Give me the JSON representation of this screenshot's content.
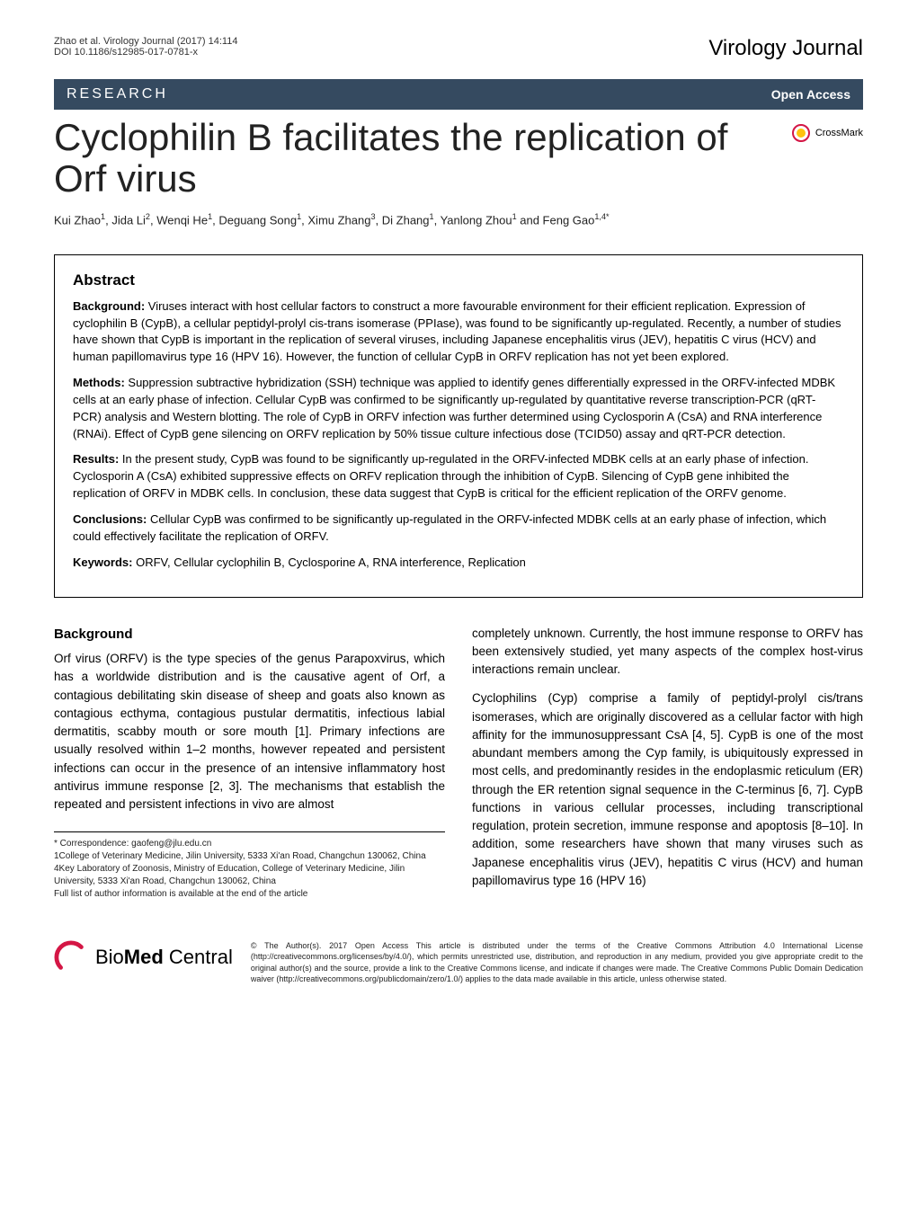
{
  "header": {
    "citation_line1": "Zhao et al. Virology Journal  (2017) 14:114",
    "citation_line2": "DOI 10.1186/s12985-017-0781-x",
    "journal": "Virology Journal"
  },
  "banner": {
    "label": "RESEARCH",
    "open_access": "Open Access"
  },
  "title": "Cyclophilin B facilitates the replication of Orf virus",
  "crossmark": "CrossMark",
  "authors_html": "Kui Zhao<sup>1</sup>, Jida Li<sup>2</sup>, Wenqi He<sup>1</sup>, Deguang Song<sup>1</sup>, Ximu Zhang<sup>3</sup>, Di Zhang<sup>1</sup>, Yanlong Zhou<sup>1</sup> and Feng Gao<sup>1,4*</sup>",
  "abstract": {
    "heading": "Abstract",
    "background_label": "Background:",
    "background": " Viruses interact with host cellular factors to construct a more favourable environment for their efficient replication. Expression of cyclophilin B (CypB), a cellular peptidyl-prolyl cis-trans isomerase (PPIase), was found to be significantly up-regulated. Recently, a number of studies have shown that CypB is important in the replication of several viruses, including Japanese encephalitis virus (JEV), hepatitis C virus (HCV) and human papillomavirus type 16 (HPV 16). However, the function of cellular CypB in ORFV replication has not yet been explored.",
    "methods_label": "Methods:",
    "methods": " Suppression subtractive hybridization (SSH) technique was applied to identify genes differentially expressed in the ORFV-infected MDBK cells at an early phase of infection. Cellular CypB was confirmed to be significantly up-regulated by quantitative reverse transcription-PCR (qRT-PCR) analysis and Western blotting. The role of CypB in ORFV infection was further determined using Cyclosporin A (CsA) and RNA interference (RNAi). Effect of CypB gene silencing on ORFV replication by 50% tissue culture infectious dose (TCID50) assay and qRT-PCR detection.",
    "results_label": "Results:",
    "results": " In the present study, CypB was found to be significantly up-regulated in the ORFV-infected MDBK cells at an early phase of infection. Cyclosporin A (CsA) exhibited suppressive effects on ORFV replication through the inhibition of CypB. Silencing of CypB gene inhibited the replication of ORFV in MDBK cells. In conclusion, these data suggest that CypB is critical for the efficient replication of the ORFV genome.",
    "conclusions_label": "Conclusions:",
    "conclusions": " Cellular CypB was confirmed to be significantly up-regulated in the ORFV-infected MDBK cells at an early phase of infection, which could effectively facilitate the replication of ORFV.",
    "keywords_label": "Keywords:",
    "keywords": " ORFV, Cellular cyclophilin B, Cyclosporine A, RNA interference, Replication"
  },
  "body": {
    "section_heading": "Background",
    "para1": "Orf virus (ORFV) is the type species of the genus Parapoxvirus, which has a worldwide distribution and is the causative agent of Orf, a contagious debilitating skin disease of sheep and goats also known as contagious ecthyma, contagious pustular dermatitis, infectious labial dermatitis, scabby mouth or sore mouth [1]. Primary infections are usually resolved within 1–2 months, however repeated and persistent infections can occur in the presence of an intensive inflammatory host antivirus immune response [2, 3]. The mechanisms that establish the repeated and persistent infections in vivo are almost",
    "para2": "completely unknown. Currently, the host immune response to ORFV has been extensively studied, yet many aspects of the complex host-virus interactions remain unclear.",
    "para3": "Cyclophilins (Cyp) comprise a family of peptidyl-prolyl cis/trans isomerases, which are originally discovered as a cellular factor with high affinity for the immunosuppressant CsA [4, 5]. CypB is one of the most abundant members among the Cyp family, is ubiquitously expressed in most cells, and predominantly resides in the endoplasmic reticulum (ER) through the ER retention signal sequence in the C-terminus [6, 7]. CypB functions in various cellular processes, including transcriptional regulation, protein secretion, immune response and apoptosis [8–10]. In addition, some researchers have shown that many viruses such as Japanese encephalitis virus (JEV), hepatitis C virus (HCV) and human papillomavirus type 16 (HPV 16)"
  },
  "footnotes": {
    "correspondence": "* Correspondence: gaofeng@jlu.edu.cn",
    "affil1": "1College of Veterinary Medicine, Jilin University, 5333 Xi'an Road, Changchun 130062, China",
    "affil4": "4Key Laboratory of Zoonosis, Ministry of Education, College of Veterinary Medicine, Jilin University, 5333 Xi'an Road, Changchun 130062, China",
    "full_list": "Full list of author information is available at the end of the article"
  },
  "footer": {
    "logo_bio": "Bio",
    "logo_med": "Med",
    "logo_central": " Central",
    "license": "© The Author(s). 2017 Open Access This article is distributed under the terms of the Creative Commons Attribution 4.0 International License (http://creativecommons.org/licenses/by/4.0/), which permits unrestricted use, distribution, and reproduction in any medium, provided you give appropriate credit to the original author(s) and the source, provide a link to the Creative Commons license, and indicate if changes were made. The Creative Commons Public Domain Dedication waiver (http://creativecommons.org/publicdomain/zero/1.0/) applies to the data made available in this article, unless otherwise stated."
  },
  "colors": {
    "banner_bg": "#354a60",
    "white": "#ffffff",
    "text": "#000000",
    "crossmark_ring": "#d41645",
    "crossmark_dot": "#ffc20e"
  },
  "typography": {
    "title_fontsize": 42,
    "journal_fontsize": 24,
    "banner_label_fontsize": 16,
    "abstract_fontsize": 13,
    "body_fontsize": 13.5,
    "footnote_fontsize": 10,
    "license_fontsize": 9
  }
}
